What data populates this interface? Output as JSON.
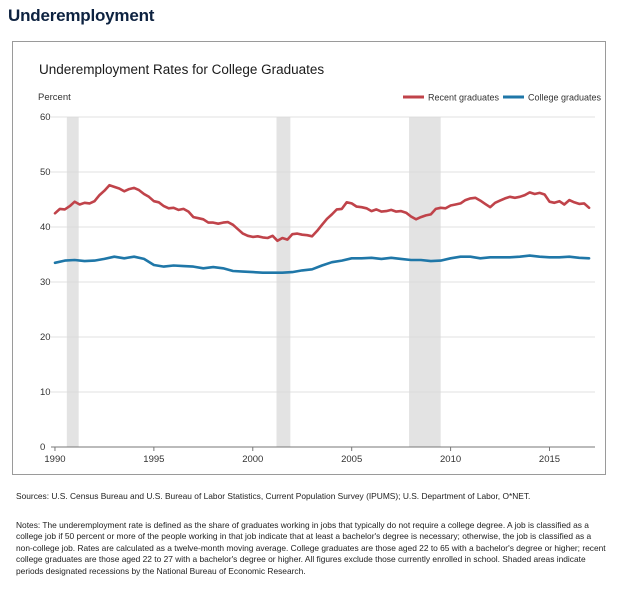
{
  "page": {
    "title": "Underemployment",
    "sources": "Sources: U.S. Census Bureau and U.S. Bureau of Labor Statistics, Current Population Survey (IPUMS); U.S. Department of Labor, O*NET.",
    "notes": "Notes: The underemployment rate is defined as the share of graduates working in jobs that typically do not require a college degree. A job is classified as a college job if 50 percent or more of the people working in that job indicate that at least a bachelor's degree is necessary; otherwise, the job is classified as a non-college job. Rates are calculated as a twelve-month moving average. College graduates are those aged 22 to 65 with a bachelor's degree or higher; recent college graduates are those aged 22 to 27 with a bachelor's degree or higher. All figures exclude those currently enrolled in school. Shaded areas indicate periods designated recessions by the National Bureau of Economic Research."
  },
  "chart_data": {
    "type": "line",
    "title": "Underemployment Rates for College Graduates",
    "ylabel": "Percent",
    "xlabel": "",
    "xlim": [
      1989.8,
      2017.3
    ],
    "ylim": [
      0,
      60
    ],
    "yticks": [
      0,
      10,
      20,
      30,
      40,
      50,
      60
    ],
    "xticks": [
      1990,
      1995,
      2000,
      2005,
      2010,
      2015
    ],
    "legend_position": "top-right",
    "grid": "horizontal",
    "recessions": [
      [
        1990.6,
        1991.2
      ],
      [
        2001.2,
        2001.9
      ],
      [
        2007.9,
        2009.5
      ]
    ],
    "colors": {
      "recent": "#c0434a",
      "college": "#1f77a8",
      "recession": "#e3e3e3",
      "grid": "#d9d9d9",
      "title": "#0d2240"
    },
    "series": [
      {
        "key": "recent",
        "name": "Recent graduates",
        "x": [
          1990.0,
          1990.25,
          1990.5,
          1990.75,
          1991.0,
          1991.25,
          1991.5,
          1991.75,
          1992.0,
          1992.25,
          1992.5,
          1992.75,
          1993.0,
          1993.25,
          1993.5,
          1993.75,
          1994.0,
          1994.25,
          1994.5,
          1994.75,
          1995.0,
          1995.25,
          1995.5,
          1995.75,
          1996.0,
          1996.25,
          1996.5,
          1996.75,
          1997.0,
          1997.25,
          1997.5,
          1997.75,
          1998.0,
          1998.25,
          1998.5,
          1998.75,
          1999.0,
          1999.25,
          1999.5,
          1999.75,
          2000.0,
          2000.25,
          2000.5,
          2000.75,
          2001.0,
          2001.25,
          2001.5,
          2001.75,
          2002.0,
          2002.25,
          2002.5,
          2002.75,
          2003.0,
          2003.25,
          2003.5,
          2003.75,
          2004.0,
          2004.25,
          2004.5,
          2004.75,
          2005.0,
          2005.25,
          2005.5,
          2005.75,
          2006.0,
          2006.25,
          2006.5,
          2006.75,
          2007.0,
          2007.25,
          2007.5,
          2007.75,
          2008.0,
          2008.25,
          2008.5,
          2008.75,
          2009.0,
          2009.25,
          2009.5,
          2009.75,
          2010.0,
          2010.25,
          2010.5,
          2010.75,
          2011.0,
          2011.25,
          2011.5,
          2011.75,
          2012.0,
          2012.25,
          2012.5,
          2012.75,
          2013.0,
          2013.25,
          2013.5,
          2013.75,
          2014.0,
          2014.25,
          2014.5,
          2014.75,
          2015.0,
          2015.25,
          2015.5,
          2015.75,
          2016.0,
          2016.25,
          2016.5,
          2016.75,
          2017.0
        ],
        "values": [
          42.5,
          43.3,
          43.2,
          43.8,
          44.6,
          44.1,
          44.4,
          44.3,
          44.7,
          45.8,
          46.6,
          47.6,
          47.3,
          47.0,
          46.5,
          46.9,
          47.1,
          46.7,
          46.0,
          45.5,
          44.7,
          44.5,
          43.8,
          43.4,
          43.5,
          43.1,
          43.3,
          42.8,
          41.8,
          41.6,
          41.4,
          40.8,
          40.8,
          40.6,
          40.8,
          40.9,
          40.4,
          39.6,
          38.8,
          38.4,
          38.2,
          38.3,
          38.1,
          38.0,
          38.4,
          37.5,
          38.0,
          37.7,
          38.7,
          38.8,
          38.6,
          38.5,
          38.3,
          39.3,
          40.4,
          41.5,
          42.3,
          43.2,
          43.3,
          44.5,
          44.3,
          43.7,
          43.6,
          43.4,
          42.9,
          43.2,
          42.8,
          42.9,
          43.1,
          42.8,
          42.9,
          42.6,
          41.9,
          41.4,
          41.8,
          42.1,
          42.3,
          43.3,
          43.5,
          43.4,
          43.9,
          44.1,
          44.3,
          44.9,
          45.2,
          45.3,
          44.8,
          44.2,
          43.6,
          44.4,
          44.8,
          45.2,
          45.5,
          45.3,
          45.5,
          45.8,
          46.3,
          46.0,
          46.2,
          45.9,
          44.6,
          44.4,
          44.7,
          44.1,
          44.9,
          44.5,
          44.2,
          44.3,
          43.5
        ]
      },
      {
        "key": "college",
        "name": "College graduates",
        "x": [
          1990.0,
          1990.5,
          1991.0,
          1991.5,
          1992.0,
          1992.5,
          1993.0,
          1993.5,
          1994.0,
          1994.5,
          1995.0,
          1995.5,
          1996.0,
          1996.5,
          1997.0,
          1997.5,
          1998.0,
          1998.5,
          1999.0,
          1999.5,
          2000.0,
          2000.5,
          2001.0,
          2001.5,
          2002.0,
          2002.5,
          2003.0,
          2003.5,
          2004.0,
          2004.5,
          2005.0,
          2005.5,
          2006.0,
          2006.5,
          2007.0,
          2007.5,
          2008.0,
          2008.5,
          2009.0,
          2009.5,
          2010.0,
          2010.5,
          2011.0,
          2011.5,
          2012.0,
          2012.5,
          2013.0,
          2013.5,
          2014.0,
          2014.5,
          2015.0,
          2015.5,
          2016.0,
          2016.5,
          2017.0
        ],
        "values": [
          33.5,
          33.9,
          34.0,
          33.8,
          33.9,
          34.2,
          34.6,
          34.3,
          34.6,
          34.2,
          33.1,
          32.8,
          33.0,
          32.9,
          32.8,
          32.5,
          32.7,
          32.5,
          32.0,
          31.9,
          31.8,
          31.7,
          31.7,
          31.7,
          31.8,
          32.1,
          32.3,
          33.0,
          33.6,
          33.9,
          34.3,
          34.3,
          34.4,
          34.2,
          34.4,
          34.2,
          34.0,
          34.0,
          33.8,
          33.9,
          34.3,
          34.6,
          34.6,
          34.3,
          34.5,
          34.5,
          34.5,
          34.6,
          34.8,
          34.6,
          34.5,
          34.5,
          34.6,
          34.4,
          34.3
        ]
      }
    ]
  }
}
